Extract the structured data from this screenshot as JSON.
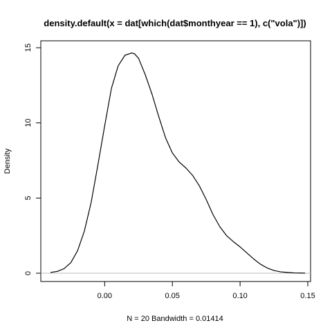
{
  "chart_data": {
    "type": "line",
    "title": "density.default(x = dat[which(dat$monthyear == 1), c(\"vola\")])",
    "xlabel": "N = 20   Bandwidth = 0.01414",
    "ylabel": "Density",
    "xlim": [
      -0.04,
      0.15
    ],
    "ylim": [
      0,
      15
    ],
    "x_ticks": [
      0.0,
      0.05,
      0.1,
      0.15
    ],
    "x_tick_labels": [
      "0.00",
      "0.05",
      "0.10",
      "0.15"
    ],
    "y_ticks": [
      0,
      5,
      10,
      15
    ],
    "y_tick_labels": [
      "0",
      "5",
      "10",
      "15"
    ],
    "grid": false,
    "baseline": 0,
    "series": [
      {
        "x": [
          -0.04,
          -0.035,
          -0.03,
          -0.025,
          -0.02,
          -0.015,
          -0.01,
          -0.005,
          0.0,
          0.005,
          0.01,
          0.015,
          0.02,
          0.022,
          0.025,
          0.03,
          0.035,
          0.04,
          0.045,
          0.05,
          0.055,
          0.06,
          0.065,
          0.07,
          0.075,
          0.08,
          0.085,
          0.09,
          0.095,
          0.1,
          0.105,
          0.11,
          0.115,
          0.12,
          0.125,
          0.13,
          0.135,
          0.14,
          0.145,
          0.148
        ],
        "y": [
          0.05,
          0.12,
          0.3,
          0.7,
          1.5,
          2.8,
          4.7,
          7.2,
          9.8,
          12.3,
          13.8,
          14.5,
          14.65,
          14.6,
          14.3,
          13.2,
          11.9,
          10.4,
          9.0,
          8.0,
          7.4,
          7.0,
          6.5,
          5.8,
          4.9,
          3.9,
          3.1,
          2.5,
          2.1,
          1.75,
          1.35,
          0.95,
          0.6,
          0.35,
          0.18,
          0.09,
          0.05,
          0.02,
          0.01,
          0.005
        ]
      }
    ]
  }
}
